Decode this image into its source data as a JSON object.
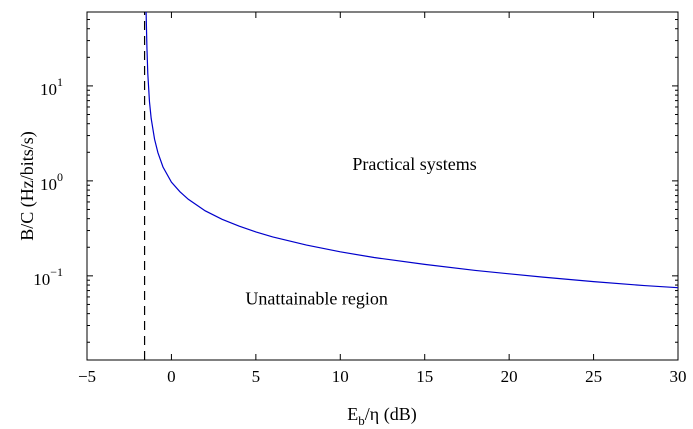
{
  "chart_data": {
    "type": "line",
    "xlabel": {
      "base": "E",
      "sub": "b",
      "rest": "/η (dB)"
    },
    "ylabel": "B/C (Hz/bits/s)",
    "xlim": [
      -5,
      30
    ],
    "ylim": [
      0.013,
      60
    ],
    "yscale": "log",
    "x_ticks": [
      -5,
      0,
      5,
      10,
      15,
      20,
      25,
      30
    ],
    "x_tick_labels": [
      "−5",
      "0",
      "5",
      "10",
      "15",
      "20",
      "25",
      "30"
    ],
    "y_ticks": [
      {
        "value": 10,
        "base": "10",
        "exp": "1"
      },
      {
        "value": 1,
        "base": "10",
        "exp": "0"
      },
      {
        "value": 0.1,
        "base": "10",
        "exp": "−1"
      }
    ],
    "series": [
      {
        "style": "solid",
        "color": "#0000cc",
        "x": [
          -1.5,
          -1.45,
          -1.4,
          -1.3,
          -1.2,
          -1.0,
          -0.8,
          -0.5,
          0,
          0.5,
          1,
          2,
          3,
          4,
          5,
          6,
          8,
          10,
          12,
          15,
          18,
          20,
          22,
          25,
          28,
          30
        ],
        "y": [
          60,
          25,
          13.5,
          6.8,
          4.55,
          2.75,
          1.98,
          1.4,
          0.97,
          0.77,
          0.64,
          0.484,
          0.394,
          0.334,
          0.29,
          0.257,
          0.211,
          0.179,
          0.156,
          0.132,
          0.114,
          0.105,
          0.097,
          0.087,
          0.079,
          0.075
        ]
      },
      {
        "style": "dashed",
        "color": "#000000",
        "x": [
          -1.59,
          -1.59
        ],
        "y": [
          0.013,
          60
        ]
      }
    ],
    "annotations": [
      {
        "text": "Practical systems",
        "x": 14.4,
        "y": 1.3
      },
      {
        "text": "Unattainable region",
        "x": 8.6,
        "y": 0.05
      }
    ],
    "grid": false,
    "legend": "none"
  }
}
